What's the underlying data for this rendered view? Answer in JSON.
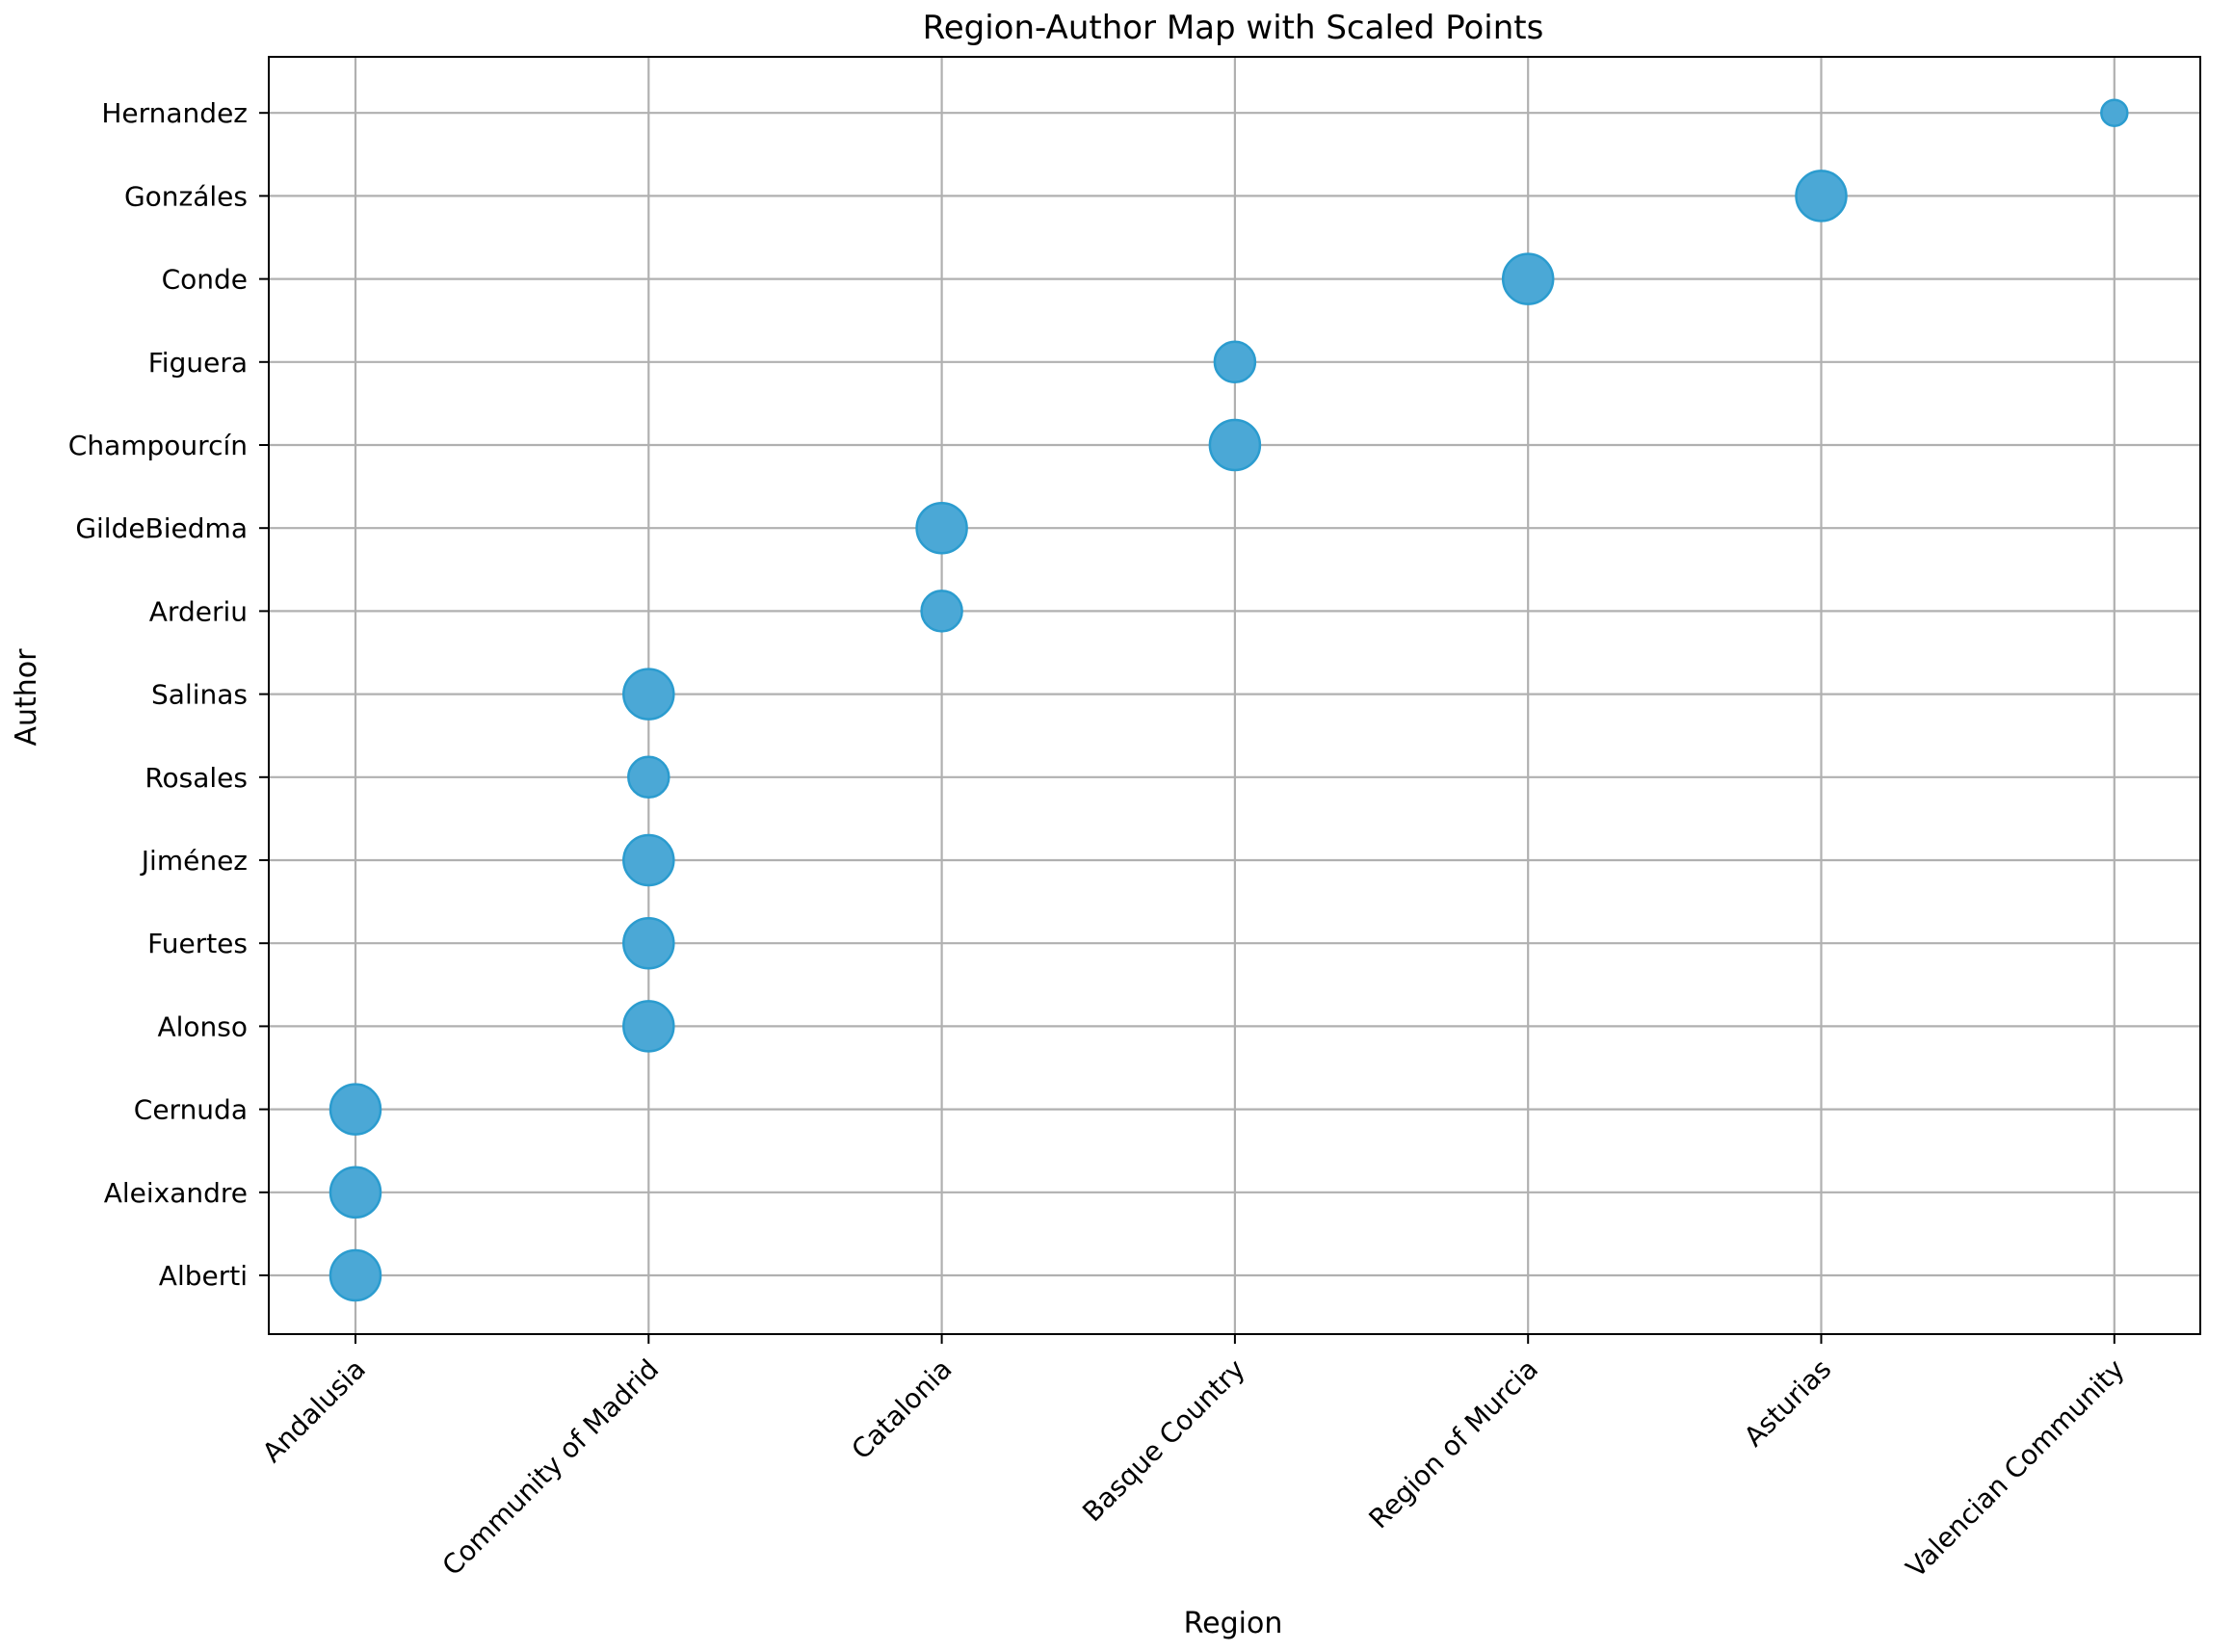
{
  "chart_data": {
    "type": "scatter",
    "title": "Region-Author Map with Scaled Points",
    "xlabel": "Region",
    "ylabel": "Author",
    "x_categories": [
      "Andalusia",
      "Community of Madrid",
      "Catalonia",
      "Basque Country",
      "Region of Murcia",
      "Asturias",
      "Valencian Community"
    ],
    "y_categories": [
      "Alberti",
      "Aleixandre",
      "Cernuda",
      "Alonso",
      "Fuertes",
      "Jiménez",
      "Rosales",
      "Salinas",
      "Arderiu",
      "GildeBiedma",
      "Champourcín",
      "Figuera",
      "Conde",
      "Gonzáles",
      "Hernandez"
    ],
    "points": [
      {
        "x": "Andalusia",
        "y": "Alberti",
        "size": 3
      },
      {
        "x": "Andalusia",
        "y": "Aleixandre",
        "size": 3
      },
      {
        "x": "Andalusia",
        "y": "Cernuda",
        "size": 3
      },
      {
        "x": "Community of Madrid",
        "y": "Alonso",
        "size": 3
      },
      {
        "x": "Community of Madrid",
        "y": "Fuertes",
        "size": 3
      },
      {
        "x": "Community of Madrid",
        "y": "Jiménez",
        "size": 3
      },
      {
        "x": "Community of Madrid",
        "y": "Rosales",
        "size": 2
      },
      {
        "x": "Community of Madrid",
        "y": "Salinas",
        "size": 3
      },
      {
        "x": "Catalonia",
        "y": "Arderiu",
        "size": 2
      },
      {
        "x": "Catalonia",
        "y": "GildeBiedma",
        "size": 3
      },
      {
        "x": "Basque Country",
        "y": "Champourcín",
        "size": 3
      },
      {
        "x": "Basque Country",
        "y": "Figuera",
        "size": 2
      },
      {
        "x": "Region of Murcia",
        "y": "Conde",
        "size": 3
      },
      {
        "x": "Asturias",
        "y": "Gonzáles",
        "size": 3
      },
      {
        "x": "Valencian Community",
        "y": "Hernandez",
        "size": 1
      }
    ],
    "grid": true,
    "colors": {
      "fill": "#4ba8d6",
      "edge": "#2b9ccf"
    }
  }
}
